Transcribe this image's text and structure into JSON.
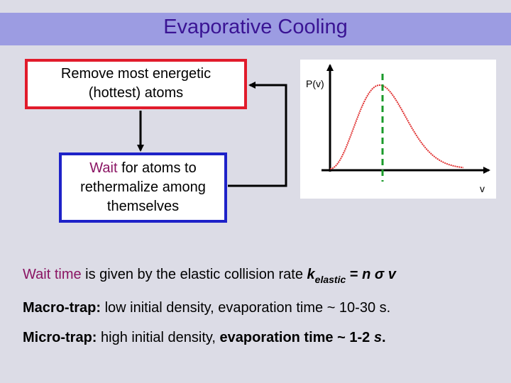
{
  "title": "Evaporative Cooling",
  "box_remove": {
    "line1": "Remove most energetic",
    "line2": "(hottest) atoms"
  },
  "box_wait": {
    "word": "Wait",
    "rest1": " for atoms to",
    "line2": "rethermalize among",
    "line3": "themselves"
  },
  "plot": {
    "ylabel": "P(v)",
    "xlabel": "v"
  },
  "statement": {
    "wait_time": "Wait time",
    "text": " is given by the elastic collision rate ",
    "k": "k",
    "sub": "elastic",
    "eq": " = ",
    "n": "n",
    "sigma": "σ",
    "v": "v"
  },
  "macro": {
    "label": "Macro-trap:",
    "text": " low initial density, evaporation time ~ 10-30 s."
  },
  "micro": {
    "label": "Micro-trap:",
    "text1": " high initial density, ",
    "bold": "evaporation time ~ 1-2 ",
    "s": "s",
    "period": "."
  },
  "colors": {
    "title_bar": "#9c9ce2",
    "title_text": "#3a1494",
    "box_remove_border": "#e11b2b",
    "box_wait_border": "#1e22c8",
    "curve": "#e03030",
    "cutoff_line": "#1a9a2a",
    "wait_word": "#8a1463"
  }
}
